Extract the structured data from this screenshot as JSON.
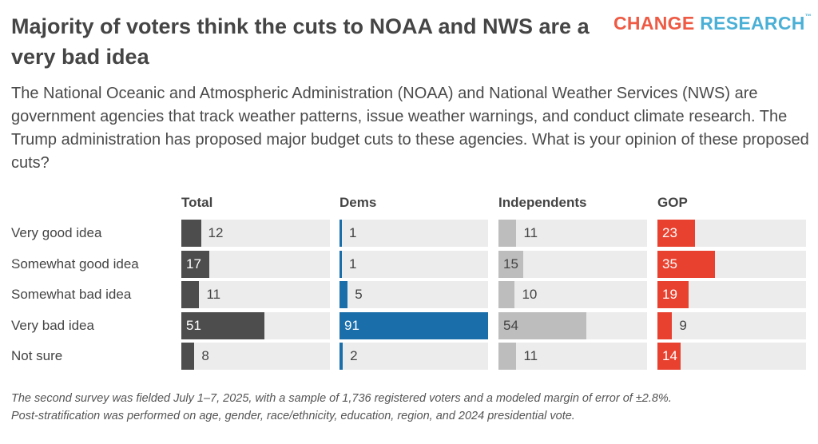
{
  "title": "Majority of voters think the cuts to NOAA and NWS are a very bad idea",
  "logo": {
    "word1": "CHANGE",
    "word2": "RESEARCH",
    "tm": "™"
  },
  "subtitle": "The National Oceanic and Atmospheric Administration (NOAA) and National Weather Services (NWS) are government agencies that track weather patterns, issue weather warnings, and conduct climate research. The Trump administration has proposed major budget cuts to these agencies. What is your opinion of these proposed cuts?",
  "footnote": {
    "line1": "The second survey was fielded July 1–7, 2025, with a sample of 1,736 registered voters and a modeled margin of error of ±2.8%.",
    "line2": "Post-stratification was performed on age, gender, race/ethnicity, education, region, and 2024 presidential vote."
  },
  "colors": {
    "total": "#4d4d4d",
    "dems": "#1a6fab",
    "independents": "#bdbdbd",
    "gop": "#e8412f",
    "track": "#ececec"
  },
  "chart_data": {
    "type": "bar",
    "orientation": "horizontal",
    "categories": [
      "Very good idea",
      "Somewhat good idea",
      "Somewhat bad idea",
      "Very bad idea",
      "Not sure"
    ],
    "series": [
      {
        "name": "Total",
        "values": [
          12,
          17,
          11,
          51,
          8
        ]
      },
      {
        "name": "Dems",
        "values": [
          1,
          1,
          5,
          91,
          2
        ]
      },
      {
        "name": "Independents",
        "values": [
          11,
          15,
          10,
          54,
          11
        ]
      },
      {
        "name": "GOP",
        "values": [
          23,
          35,
          19,
          9,
          14
        ]
      }
    ],
    "xlim": [
      0,
      91
    ],
    "grid": false,
    "legend": "none"
  }
}
